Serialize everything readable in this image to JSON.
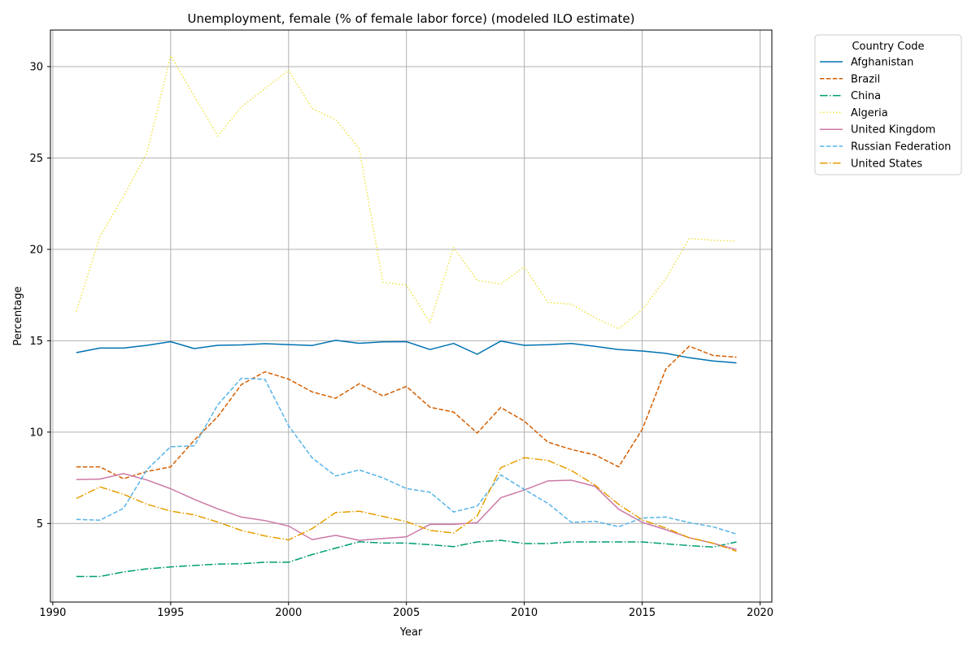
{
  "chart_data": {
    "type": "line",
    "title": "Unemployment, female (% of female labor force) (modeled ILO estimate)",
    "xlabel": "Year",
    "ylabel": "Percentage",
    "xlim": [
      1989.9,
      2020.5
    ],
    "ylim": [
      0.7,
      32.0
    ],
    "xticks": [
      1990,
      1995,
      2000,
      2005,
      2010,
      2015,
      2020
    ],
    "yticks": [
      5,
      10,
      15,
      20,
      25,
      30
    ],
    "grid": true,
    "legend": {
      "title": "Country Code",
      "position": "outside-top-right"
    },
    "x": [
      1991,
      1992,
      1993,
      1994,
      1995,
      1996,
      1997,
      1998,
      1999,
      2000,
      2001,
      2002,
      2003,
      2004,
      2005,
      2006,
      2007,
      2008,
      2009,
      2010,
      2011,
      2012,
      2013,
      2014,
      2015,
      2016,
      2017,
      2018,
      2019
    ],
    "series": [
      {
        "name": "Afghanistan",
        "color": "#0072b2",
        "dash": "solid",
        "values": [
          14.35,
          14.6,
          14.6,
          14.75,
          14.95,
          14.57,
          14.75,
          14.77,
          14.84,
          14.79,
          14.74,
          15.02,
          14.86,
          14.94,
          14.95,
          14.52,
          14.85,
          14.26,
          14.98,
          14.75,
          14.78,
          14.85,
          14.69,
          14.52,
          14.44,
          14.31,
          14.07,
          13.89,
          13.79
        ]
      },
      {
        "name": "Brazil",
        "color": "#d55e00",
        "dash": "dashed",
        "values": [
          8.1,
          8.1,
          7.45,
          7.85,
          8.1,
          9.55,
          10.85,
          12.6,
          13.3,
          12.9,
          12.2,
          11.85,
          12.65,
          11.98,
          12.5,
          11.36,
          11.1,
          9.95,
          11.35,
          10.6,
          9.45,
          9.05,
          8.75,
          8.1,
          10.15,
          13.45,
          14.7,
          14.2,
          14.1
        ]
      },
      {
        "name": "China",
        "color": "#009e73",
        "dash": "dashdot",
        "values": [
          2.1,
          2.1,
          2.35,
          2.52,
          2.62,
          2.7,
          2.78,
          2.8,
          2.88,
          2.88,
          3.3,
          3.65,
          4.0,
          3.93,
          3.93,
          3.84,
          3.73,
          3.99,
          4.08,
          3.9,
          3.9,
          3.99,
          3.99,
          3.99,
          3.99,
          3.89,
          3.79,
          3.71,
          3.99
        ]
      },
      {
        "name": "Algeria",
        "color": "#f0e442",
        "dash": "dotted",
        "values": [
          16.6,
          20.7,
          22.9,
          25.3,
          30.6,
          28.4,
          26.2,
          27.8,
          28.8,
          29.8,
          27.7,
          27.1,
          25.5,
          18.2,
          18.05,
          16.0,
          20.1,
          18.3,
          18.1,
          19.05,
          17.1,
          17.0,
          16.25,
          15.65,
          16.7,
          18.4,
          20.6,
          20.5,
          20.45
        ]
      },
      {
        "name": "United Kingdom",
        "color": "#cc79a7",
        "dash": "solid",
        "values": [
          7.4,
          7.43,
          7.73,
          7.38,
          6.9,
          6.32,
          5.8,
          5.35,
          5.16,
          4.86,
          4.12,
          4.35,
          4.08,
          4.18,
          4.27,
          4.95,
          4.95,
          5.05,
          6.41,
          6.83,
          7.33,
          7.37,
          7.03,
          5.78,
          5.06,
          4.66,
          4.22,
          3.92,
          3.57
        ]
      },
      {
        "name": "Russian Federation",
        "color": "#56b4e9",
        "dash": "dashed",
        "values": [
          5.22,
          5.18,
          5.83,
          7.95,
          9.2,
          9.25,
          11.5,
          12.95,
          12.88,
          10.35,
          8.59,
          7.6,
          7.93,
          7.5,
          6.91,
          6.71,
          5.63,
          5.95,
          7.66,
          6.86,
          6.1,
          5.06,
          5.12,
          4.82,
          5.3,
          5.35,
          5.05,
          4.82,
          4.42
        ]
      },
      {
        "name": "United States",
        "color": "#e69f00",
        "dash": "dashdot",
        "values": [
          6.37,
          7.0,
          6.6,
          6.05,
          5.68,
          5.47,
          5.08,
          4.62,
          4.32,
          4.1,
          4.72,
          5.6,
          5.67,
          5.39,
          5.1,
          4.62,
          4.48,
          5.41,
          8.05,
          8.6,
          8.45,
          7.9,
          7.1,
          6.05,
          5.2,
          4.75,
          4.22,
          3.93,
          3.48
        ]
      }
    ]
  }
}
